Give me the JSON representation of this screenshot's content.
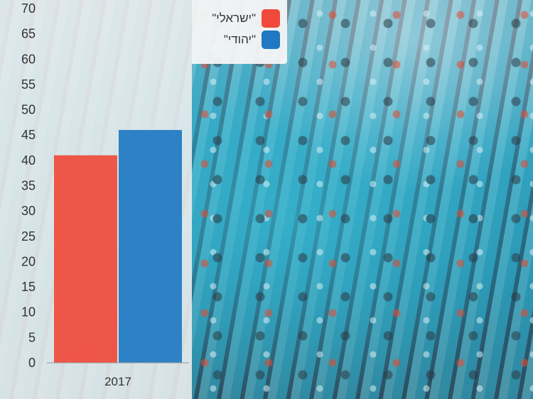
{
  "chart_data": {
    "type": "bar",
    "categories": [
      "2017"
    ],
    "series": [
      {
        "name": "\"ישראלי\"",
        "values": [
          41
        ],
        "color": "#f04a3a"
      },
      {
        "name": "\"יהודי\"",
        "values": [
          46
        ],
        "color": "#1f78c1"
      }
    ],
    "ylim": [
      0,
      70
    ],
    "yticks": [
      "0",
      "5",
      "10",
      "15",
      "20",
      "25",
      "30",
      "35",
      "40",
      "45",
      "50",
      "55",
      "60",
      "65",
      "70"
    ],
    "legend_position": "top-right",
    "grid": false
  }
}
